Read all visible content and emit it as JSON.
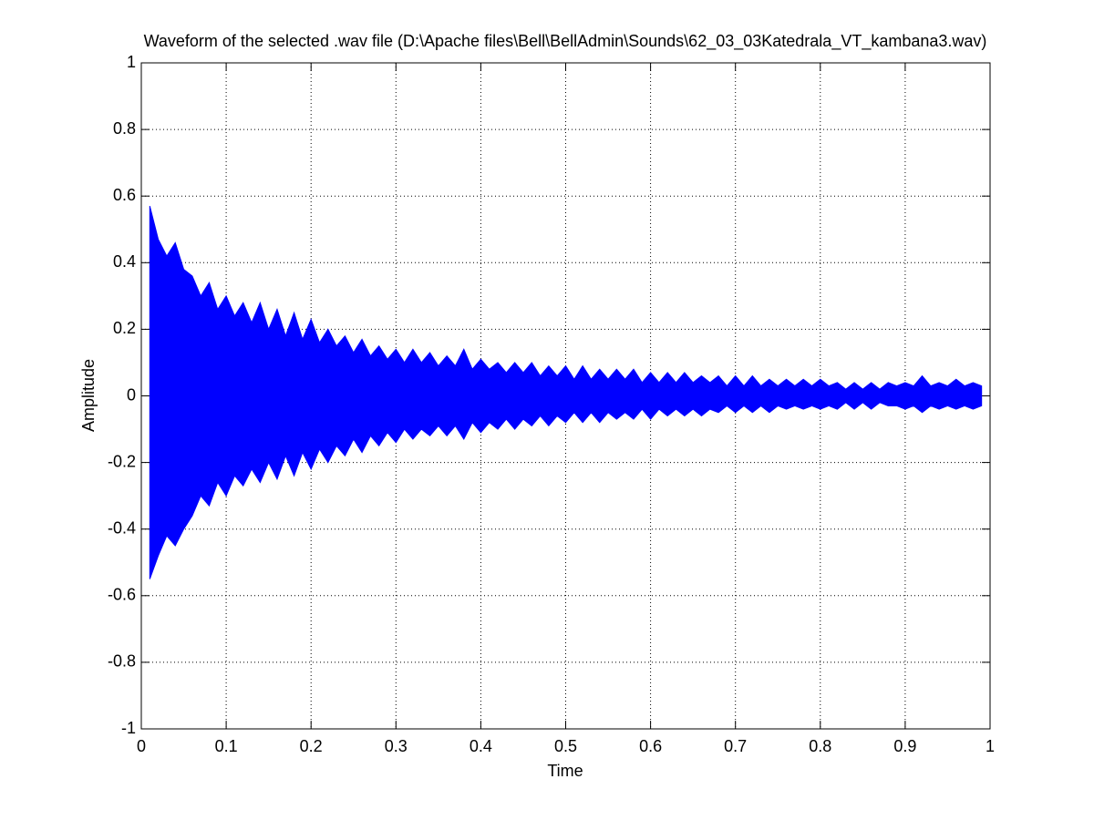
{
  "chart_data": {
    "type": "area",
    "title": "Waveform of the selected .wav file (D:\\Apache files\\Bell\\BellAdmin\\Sounds\\62_03_03Katedrala_VT_kambana3.wav)",
    "x_label": "Time",
    "y_label": "Amplitude",
    "x": [
      0.01,
      0.02,
      0.03,
      0.04,
      0.05,
      0.06,
      0.07,
      0.08,
      0.09,
      0.1,
      0.11,
      0.12,
      0.13,
      0.14,
      0.15,
      0.16,
      0.17,
      0.18,
      0.19,
      0.2,
      0.21,
      0.22,
      0.23,
      0.24,
      0.25,
      0.26,
      0.27,
      0.28,
      0.29,
      0.3,
      0.31,
      0.32,
      0.33,
      0.34,
      0.35,
      0.36,
      0.37,
      0.38,
      0.39,
      0.4,
      0.41,
      0.42,
      0.43,
      0.44,
      0.45,
      0.46,
      0.47,
      0.48,
      0.49,
      0.5,
      0.51,
      0.52,
      0.53,
      0.54,
      0.55,
      0.56,
      0.57,
      0.58,
      0.59,
      0.6,
      0.61,
      0.62,
      0.63,
      0.64,
      0.65,
      0.66,
      0.67,
      0.68,
      0.69,
      0.7,
      0.71,
      0.72,
      0.73,
      0.74,
      0.75,
      0.76,
      0.77,
      0.78,
      0.79,
      0.8,
      0.81,
      0.82,
      0.83,
      0.84,
      0.85,
      0.86,
      0.87,
      0.88,
      0.89,
      0.9,
      0.91,
      0.92,
      0.93,
      0.94,
      0.95,
      0.96,
      0.97,
      0.98,
      0.99
    ],
    "series": [
      {
        "color": "#0000ff",
        "values": [
          0.57,
          0.47,
          0.42,
          0.46,
          0.38,
          0.36,
          0.3,
          0.34,
          0.26,
          0.3,
          0.24,
          0.28,
          0.22,
          0.28,
          0.2,
          0.26,
          0.18,
          0.25,
          0.17,
          0.23,
          0.16,
          0.2,
          0.15,
          0.18,
          0.13,
          0.17,
          0.12,
          0.15,
          0.11,
          0.14,
          0.1,
          0.14,
          0.1,
          0.13,
          0.09,
          0.12,
          0.09,
          0.14,
          0.08,
          0.11,
          0.08,
          0.1,
          0.07,
          0.1,
          0.07,
          0.1,
          0.06,
          0.09,
          0.06,
          0.09,
          0.05,
          0.09,
          0.05,
          0.08,
          0.05,
          0.08,
          0.05,
          0.08,
          0.04,
          0.07,
          0.04,
          0.07,
          0.04,
          0.07,
          0.04,
          0.06,
          0.04,
          0.06,
          0.03,
          0.06,
          0.03,
          0.06,
          0.03,
          0.05,
          0.03,
          0.05,
          0.03,
          0.05,
          0.03,
          0.05,
          0.03,
          0.04,
          0.02,
          0.04,
          0.02,
          0.04,
          0.02,
          0.04,
          0.03,
          0.04,
          0.03,
          0.06,
          0.03,
          0.04,
          0.03,
          0.05,
          0.03,
          0.04,
          0.03
        ]
      },
      {
        "color": "#0000ff",
        "values": [
          -0.55,
          -0.48,
          -0.42,
          -0.45,
          -0.4,
          -0.36,
          -0.3,
          -0.33,
          -0.26,
          -0.3,
          -0.24,
          -0.27,
          -0.22,
          -0.26,
          -0.2,
          -0.25,
          -0.18,
          -0.24,
          -0.17,
          -0.22,
          -0.16,
          -0.2,
          -0.15,
          -0.18,
          -0.13,
          -0.17,
          -0.12,
          -0.15,
          -0.11,
          -0.14,
          -0.1,
          -0.13,
          -0.1,
          -0.12,
          -0.09,
          -0.12,
          -0.09,
          -0.13,
          -0.08,
          -0.11,
          -0.08,
          -0.1,
          -0.07,
          -0.1,
          -0.07,
          -0.09,
          -0.06,
          -0.09,
          -0.06,
          -0.08,
          -0.05,
          -0.08,
          -0.05,
          -0.08,
          -0.05,
          -0.07,
          -0.05,
          -0.07,
          -0.04,
          -0.07,
          -0.04,
          -0.06,
          -0.04,
          -0.06,
          -0.04,
          -0.06,
          -0.04,
          -0.05,
          -0.03,
          -0.05,
          -0.03,
          -0.05,
          -0.03,
          -0.05,
          -0.03,
          -0.04,
          -0.03,
          -0.04,
          -0.03,
          -0.04,
          -0.03,
          -0.04,
          -0.02,
          -0.04,
          -0.02,
          -0.04,
          -0.02,
          -0.03,
          -0.03,
          -0.04,
          -0.03,
          -0.05,
          -0.03,
          -0.04,
          -0.03,
          -0.04,
          -0.03,
          -0.04,
          -0.03
        ]
      }
    ],
    "xlim": [
      0,
      1
    ],
    "xticks": [
      0,
      0.1,
      0.2,
      0.3,
      0.4,
      0.5,
      0.6,
      0.7,
      0.8,
      0.9,
      1
    ],
    "ylim": [
      -1,
      1
    ],
    "yticks": [
      -1,
      -0.8,
      -0.6,
      -0.4,
      -0.2,
      0,
      0.2,
      0.4,
      0.6,
      0.8,
      1
    ],
    "grid": true
  }
}
